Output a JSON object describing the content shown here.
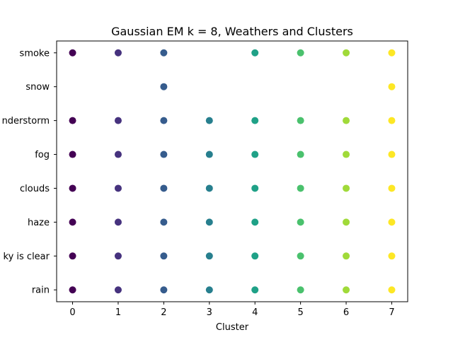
{
  "chart_data": {
    "type": "scatter",
    "title": "Gaussian EM k = 8, Weathers and Clusters",
    "xlabel": "Cluster",
    "ylabel": "",
    "x_ticks": [
      "0",
      "1",
      "2",
      "3",
      "4",
      "5",
      "6",
      "7"
    ],
    "y_categories": [
      "rain",
      "sky is clear",
      "haze",
      "clouds",
      "fog",
      "thunderstorm",
      "snow",
      "smoke"
    ],
    "y_tick_labels_visible": [
      "rain",
      "ky is clear",
      "haze",
      "clouds",
      "fog",
      "nderstorm",
      "snow",
      "smoke"
    ],
    "xlim": [
      -0.35,
      7.35
    ],
    "grid": false,
    "cluster_colors": [
      "#440154",
      "#46327e",
      "#365c8d",
      "#277f8e",
      "#1fa187",
      "#4ac16d",
      "#a0da39",
      "#fde725"
    ],
    "points": [
      {
        "x": 0,
        "y": "smoke"
      },
      {
        "x": 1,
        "y": "smoke"
      },
      {
        "x": 2,
        "y": "smoke"
      },
      {
        "x": 4,
        "y": "smoke"
      },
      {
        "x": 5,
        "y": "smoke"
      },
      {
        "x": 6,
        "y": "smoke"
      },
      {
        "x": 7,
        "y": "smoke"
      },
      {
        "x": 2,
        "y": "snow"
      },
      {
        "x": 7,
        "y": "snow"
      },
      {
        "x": 0,
        "y": "thunderstorm"
      },
      {
        "x": 1,
        "y": "thunderstorm"
      },
      {
        "x": 2,
        "y": "thunderstorm"
      },
      {
        "x": 3,
        "y": "thunderstorm"
      },
      {
        "x": 4,
        "y": "thunderstorm"
      },
      {
        "x": 5,
        "y": "thunderstorm"
      },
      {
        "x": 6,
        "y": "thunderstorm"
      },
      {
        "x": 7,
        "y": "thunderstorm"
      },
      {
        "x": 0,
        "y": "fog"
      },
      {
        "x": 1,
        "y": "fog"
      },
      {
        "x": 2,
        "y": "fog"
      },
      {
        "x": 3,
        "y": "fog"
      },
      {
        "x": 4,
        "y": "fog"
      },
      {
        "x": 5,
        "y": "fog"
      },
      {
        "x": 6,
        "y": "fog"
      },
      {
        "x": 7,
        "y": "fog"
      },
      {
        "x": 0,
        "y": "clouds"
      },
      {
        "x": 1,
        "y": "clouds"
      },
      {
        "x": 2,
        "y": "clouds"
      },
      {
        "x": 3,
        "y": "clouds"
      },
      {
        "x": 4,
        "y": "clouds"
      },
      {
        "x": 5,
        "y": "clouds"
      },
      {
        "x": 6,
        "y": "clouds"
      },
      {
        "x": 7,
        "y": "clouds"
      },
      {
        "x": 0,
        "y": "haze"
      },
      {
        "x": 1,
        "y": "haze"
      },
      {
        "x": 2,
        "y": "haze"
      },
      {
        "x": 3,
        "y": "haze"
      },
      {
        "x": 4,
        "y": "haze"
      },
      {
        "x": 5,
        "y": "haze"
      },
      {
        "x": 6,
        "y": "haze"
      },
      {
        "x": 7,
        "y": "haze"
      },
      {
        "x": 0,
        "y": "sky is clear"
      },
      {
        "x": 1,
        "y": "sky is clear"
      },
      {
        "x": 2,
        "y": "sky is clear"
      },
      {
        "x": 3,
        "y": "sky is clear"
      },
      {
        "x": 4,
        "y": "sky is clear"
      },
      {
        "x": 5,
        "y": "sky is clear"
      },
      {
        "x": 6,
        "y": "sky is clear"
      },
      {
        "x": 7,
        "y": "sky is clear"
      },
      {
        "x": 0,
        "y": "rain"
      },
      {
        "x": 1,
        "y": "rain"
      },
      {
        "x": 2,
        "y": "rain"
      },
      {
        "x": 3,
        "y": "rain"
      },
      {
        "x": 4,
        "y": "rain"
      },
      {
        "x": 5,
        "y": "rain"
      },
      {
        "x": 6,
        "y": "rain"
      },
      {
        "x": 7,
        "y": "rain"
      }
    ]
  }
}
